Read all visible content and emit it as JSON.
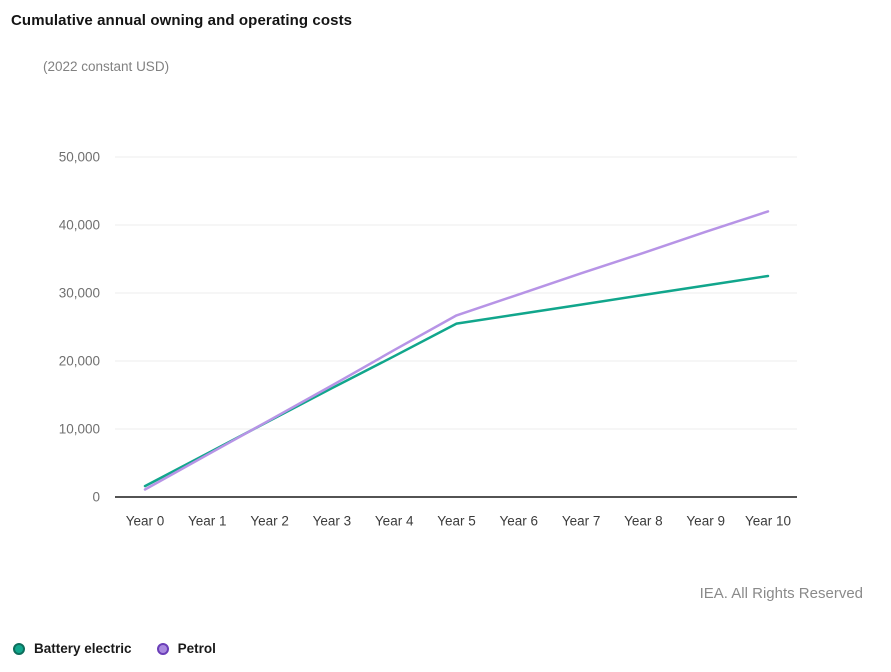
{
  "chart": {
    "title": "Cumulative annual owning and operating costs",
    "subtitle": "(2022 constant USD)"
  },
  "footer": {
    "copyright": "IEA. All Rights Reserved"
  },
  "chart_data": {
    "type": "line",
    "title": "Cumulative annual owning and operating costs",
    "subtitle": "(2022 constant USD)",
    "categories": [
      "Year 0",
      "Year 1",
      "Year 2",
      "Year 3",
      "Year 4",
      "Year 5",
      "Year 6",
      "Year 7",
      "Year 8",
      "Year 9",
      "Year 10"
    ],
    "series": [
      {
        "name": "Battery electric",
        "color": "#11a68c",
        "marker_fill": "#11a68c",
        "marker_border": "#0e6e5c",
        "values": [
          1600,
          6400,
          11200,
          16000,
          20700,
          25500,
          26900,
          28300,
          29700,
          31100,
          32500
        ]
      },
      {
        "name": "Petrol",
        "color": "#b794e6",
        "marker_fill": "#a98ae0",
        "marker_border": "#6b3fb8",
        "values": [
          1100,
          6200,
          11300,
          16400,
          21600,
          26700,
          29800,
          32900,
          35900,
          39000,
          42000
        ]
      }
    ],
    "ylim": [
      0,
      50000
    ],
    "yticks": [
      0,
      10000,
      20000,
      30000,
      40000,
      50000
    ],
    "grid": true,
    "legend_position": "bottom-left",
    "colors": {
      "grid": "#ececec",
      "axis": "#1a1a1a",
      "ytick_label": "#707070",
      "xtick_label": "#3c3c3c"
    }
  }
}
